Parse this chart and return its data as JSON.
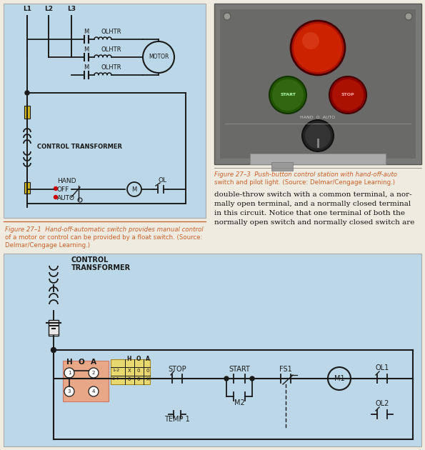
{
  "bg_color": "#f0ebe0",
  "top_left_bg": "#bcd8e8",
  "bottom_bg": "#bcd8e8",
  "fig27_1_caption": "Figure 27–1  Hand-off-automatic switch provides manual control\nof a motor or control can be provided by a float switch. (Source:\nDelmar/Cengage Learning.)",
  "fig27_3_caption": "Figure 27–3  Push-button control station with hand-off-auto\nswitch and pilot light. (Source: Delmar/Cengage Learning.)",
  "body_text_lines": [
    "double-throw switch with a common terminal, a nor-",
    "mally open terminal, and a normally closed terminal",
    "in this circuit. Notice that one terminal of both the",
    "normally open switch and normally closed switch are"
  ],
  "orange_color": "#c8602a",
  "lc": "#1a1a1a",
  "highlight_salmon": "#e8a888",
  "highlight_yellow": "#e8d870",
  "fuse_yellow": "#d4b820"
}
